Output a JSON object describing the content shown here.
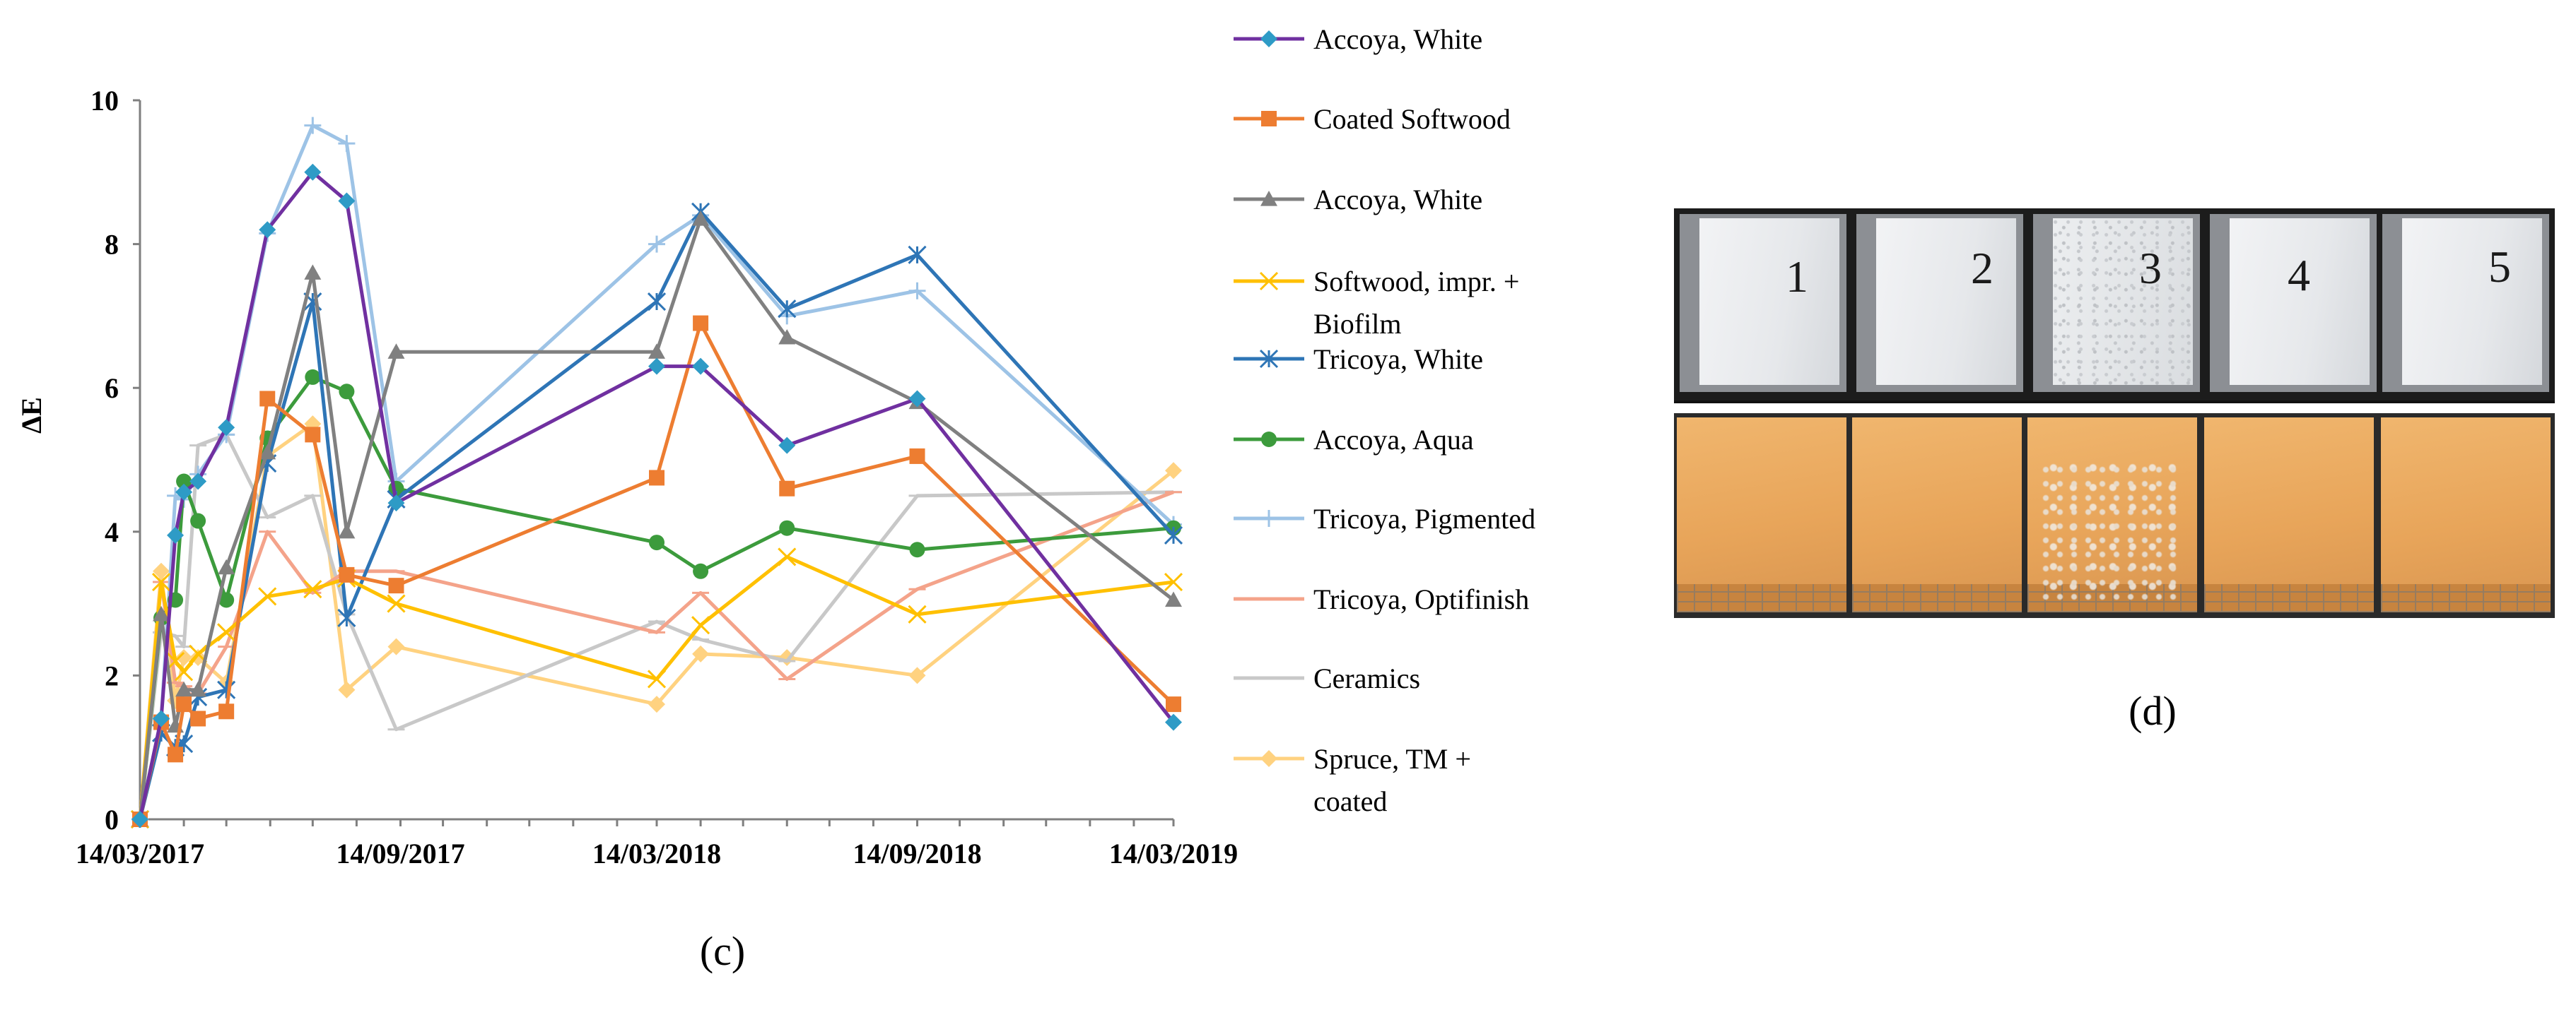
{
  "chart_data": {
    "type": "line",
    "title": "",
    "xlabel": "",
    "ylabel": "ΔE",
    "ylim": [
      0,
      10
    ],
    "yticks": [
      0,
      2,
      4,
      6,
      8,
      10
    ],
    "x_range": [
      "2017-03-14",
      "2019-03-14"
    ],
    "xtick_labels": [
      "14/03/2017",
      "14/09/2017",
      "14/03/2018",
      "14/09/2018",
      "14/03/2019"
    ],
    "panel_label": "(c)",
    "legend_position": "right",
    "series": [
      {
        "name": "Accoya, White",
        "color": "#7030a0",
        "marker": "diamond",
        "marker_color": "#2e9bc6",
        "x": [
          "2017-03-14",
          "2017-03-29",
          "2017-04-08",
          "2017-04-14",
          "2017-04-24",
          "2017-05-14",
          "2017-06-12",
          "2017-07-14",
          "2017-08-07",
          "2017-09-11",
          "2018-03-14",
          "2018-04-14",
          "2018-06-14",
          "2018-09-14",
          "2019-03-14"
        ],
        "values": [
          0,
          1.4,
          3.95,
          4.55,
          4.7,
          5.45,
          8.2,
          9.0,
          8.6,
          4.4,
          6.3,
          6.3,
          5.2,
          5.85,
          1.35
        ]
      },
      {
        "name": "Coated Softwood",
        "color": "#ed7d31",
        "marker": "square",
        "marker_color": "#ed7d31",
        "x": [
          "2017-03-14",
          "2017-03-29",
          "2017-04-08",
          "2017-04-14",
          "2017-04-24",
          "2017-05-14",
          "2017-06-12",
          "2017-07-14",
          "2017-08-07",
          "2017-09-11",
          "2018-03-14",
          "2018-04-14",
          "2018-06-14",
          "2018-09-14",
          "2019-03-14"
        ],
        "values": [
          0,
          1.35,
          0.9,
          1.6,
          1.4,
          1.5,
          5.85,
          5.35,
          3.4,
          3.25,
          4.75,
          6.9,
          4.6,
          5.05,
          1.6
        ]
      },
      {
        "name": "Accoya, White",
        "color": "#808080",
        "marker": "triangle",
        "marker_color": "#808080",
        "x": [
          "2017-03-14",
          "2017-03-29",
          "2017-04-08",
          "2017-04-14",
          "2017-04-24",
          "2017-05-14",
          "2017-06-12",
          "2017-07-14",
          "2017-08-07",
          "2017-09-11",
          "2018-03-14",
          "2018-04-14",
          "2018-06-14",
          "2018-09-14",
          "2019-03-14"
        ],
        "values": [
          0,
          2.85,
          1.3,
          1.8,
          1.8,
          3.5,
          5.1,
          7.6,
          4.0,
          6.5,
          6.5,
          8.35,
          6.7,
          5.8,
          3.05
        ]
      },
      {
        "name": "Softwood, impr. + Biofilm",
        "color": "#ffc000",
        "marker": "x",
        "marker_color": "#ffc000",
        "x": [
          "2017-03-14",
          "2017-03-29",
          "2017-04-08",
          "2017-04-14",
          "2017-04-24",
          "2017-05-14",
          "2017-06-12",
          "2017-07-14",
          "2017-08-07",
          "2017-09-11",
          "2018-03-14",
          "2018-04-14",
          "2018-06-14",
          "2018-09-14",
          "2019-03-14"
        ],
        "values": [
          0,
          3.3,
          2.2,
          2.05,
          2.3,
          2.6,
          3.1,
          3.2,
          3.35,
          3.0,
          1.95,
          2.7,
          3.65,
          2.85,
          3.3
        ]
      },
      {
        "name": "Tricoya, White",
        "color": "#2e75b6",
        "marker": "asterisk",
        "marker_color": "#2e75b6",
        "x": [
          "2017-03-14",
          "2017-03-29",
          "2017-04-08",
          "2017-04-14",
          "2017-04-24",
          "2017-05-14",
          "2017-06-12",
          "2017-07-14",
          "2017-08-07",
          "2017-09-11",
          "2018-03-14",
          "2018-04-14",
          "2018-06-14",
          "2018-09-14",
          "2019-03-14"
        ],
        "values": [
          0,
          1.2,
          1.0,
          1.05,
          1.7,
          1.8,
          4.95,
          7.2,
          2.8,
          4.45,
          7.2,
          8.45,
          7.1,
          7.85,
          3.95
        ]
      },
      {
        "name": "Accoya, Aqua",
        "color": "#3c9b3c",
        "marker": "circle",
        "marker_color": "#3c9b3c",
        "x": [
          "2017-03-14",
          "2017-03-29",
          "2017-04-08",
          "2017-04-14",
          "2017-04-24",
          "2017-05-14",
          "2017-06-12",
          "2017-07-14",
          "2017-08-07",
          "2017-09-11",
          "2018-03-14",
          "2018-04-14",
          "2018-06-14",
          "2018-09-14",
          "2019-03-14"
        ],
        "values": [
          0,
          2.8,
          3.05,
          4.7,
          4.15,
          3.05,
          5.3,
          6.15,
          5.95,
          4.6,
          3.85,
          3.45,
          4.05,
          3.75,
          4.05
        ]
      },
      {
        "name": "Tricoya, Pigmented",
        "color": "#9dc3e6",
        "marker": "plus",
        "marker_color": "#9dc3e6",
        "x": [
          "2017-03-14",
          "2017-03-29",
          "2017-04-08",
          "2017-04-14",
          "2017-04-24",
          "2017-05-14",
          "2017-06-12",
          "2017-07-14",
          "2017-08-07",
          "2017-09-11",
          "2018-03-14",
          "2018-04-14",
          "2018-06-14",
          "2018-09-14",
          "2019-03-14"
        ],
        "values": [
          0,
          1.4,
          4.5,
          4.45,
          4.8,
          5.35,
          8.15,
          9.65,
          9.4,
          4.7,
          8.0,
          8.4,
          7.0,
          7.35,
          4.1
        ]
      },
      {
        "name": "Tricoya, Optifinish",
        "color": "#f4a38a",
        "marker": "dash",
        "marker_color": "#f4a38a",
        "x": [
          "2017-03-14",
          "2017-03-29",
          "2017-04-08",
          "2017-04-14",
          "2017-04-24",
          "2017-05-14",
          "2017-06-12",
          "2017-07-14",
          "2017-08-07",
          "2017-09-11",
          "2018-03-14",
          "2018-04-14",
          "2018-06-14",
          "2018-09-14",
          "2019-03-14"
        ],
        "values": [
          0,
          3.3,
          1.9,
          1.85,
          1.75,
          2.4,
          4.0,
          3.15,
          3.45,
          3.45,
          2.6,
          3.15,
          1.95,
          3.2,
          4.55
        ]
      },
      {
        "name": "Ceramics",
        "color": "#c8c8c8",
        "marker": "dash",
        "marker_color": "#c8c8c8",
        "x": [
          "2017-03-14",
          "2017-03-29",
          "2017-04-08",
          "2017-04-14",
          "2017-04-24",
          "2017-05-14",
          "2017-06-12",
          "2017-07-14",
          "2017-08-07",
          "2017-09-11",
          "2018-03-14",
          "2018-04-14",
          "2018-06-14",
          "2018-09-14",
          "2019-03-14"
        ],
        "values": [
          0,
          2.6,
          2.55,
          2.4,
          5.2,
          5.35,
          4.2,
          4.5,
          2.85,
          1.25,
          2.75,
          2.5,
          2.2,
          4.5,
          4.55
        ]
      },
      {
        "name": "Spruce, TM + coated",
        "color": "#ffd280",
        "marker": "diamond",
        "marker_color": "#ffd280",
        "x": [
          "2017-03-14",
          "2017-03-29",
          "2017-04-08",
          "2017-04-14",
          "2017-04-24",
          "2017-05-14",
          "2017-06-12",
          "2017-07-14",
          "2017-08-07",
          "2017-09-11",
          "2018-03-14",
          "2018-04-14",
          "2018-06-14",
          "2018-09-14",
          "2019-03-14"
        ],
        "values": [
          0,
          3.45,
          1.65,
          2.25,
          2.25,
          1.9,
          5.05,
          5.5,
          1.8,
          2.4,
          1.6,
          2.3,
          2.25,
          2.0,
          4.85
        ]
      }
    ]
  },
  "legend": {
    "labels": [
      [
        "Accoya, White"
      ],
      [
        "Coated Softwood"
      ],
      [
        "Accoya, White"
      ],
      [
        "Softwood, impr. +",
        "Biofilm"
      ],
      [
        "Tricoya, White"
      ],
      [
        "Accoya, Aqua"
      ],
      [
        "Tricoya, Pigmented"
      ],
      [
        "Tricoya, Optifinish"
      ],
      [
        "Ceramics"
      ],
      [
        "Spruce, TM +",
        "coated"
      ]
    ]
  },
  "photo": {
    "panel_label": "(d)",
    "sample_numbers": [
      "1",
      "2",
      "3",
      "4",
      "5"
    ]
  }
}
